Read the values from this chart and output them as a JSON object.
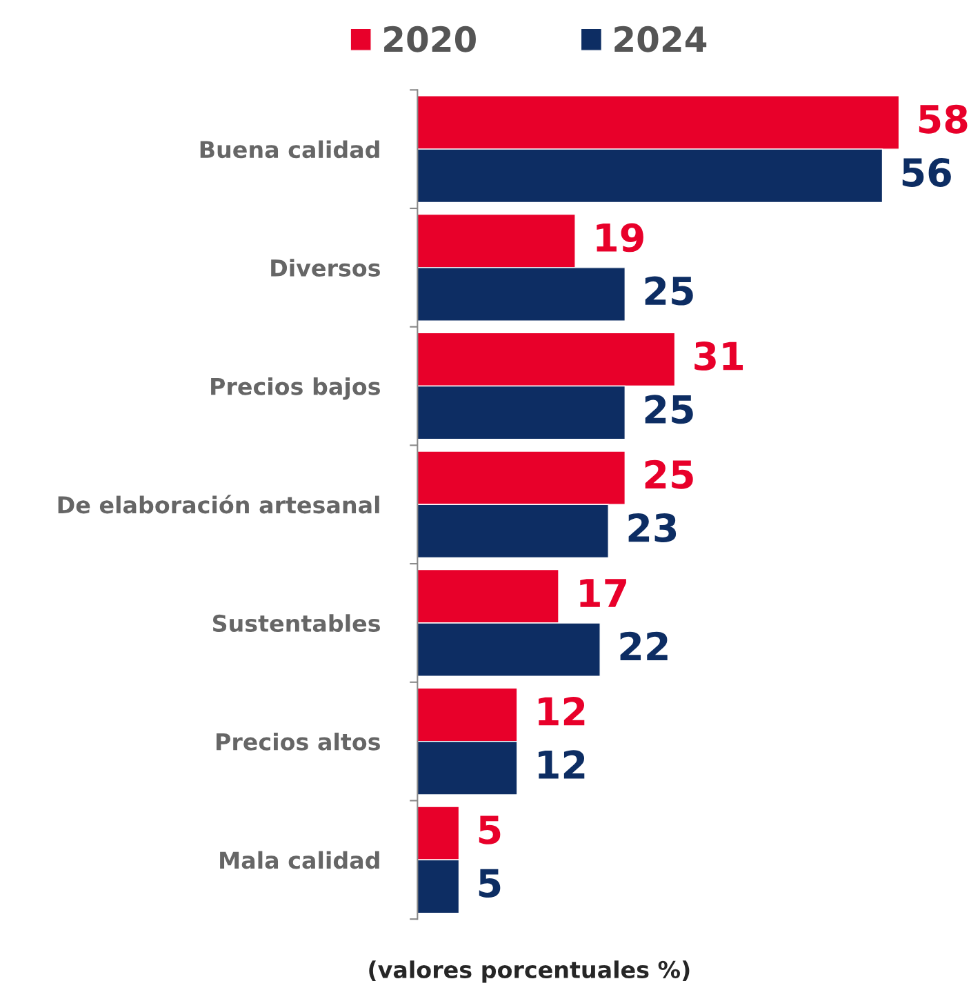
{
  "chart_data": {
    "type": "bar",
    "orientation": "horizontal",
    "xlabel": "(valores porcentuales %)",
    "categories": [
      "Buena calidad",
      "Diversos",
      "Precios bajos",
      "De elaboración artesanal",
      "Sustentables",
      "Precios altos",
      "Mala calidad"
    ],
    "series": [
      {
        "name": "2020",
        "color": "#e8002a",
        "values": [
          58,
          19,
          31,
          25,
          17,
          12,
          5
        ]
      },
      {
        "name": "2024",
        "color": "#0d2d63",
        "values": [
          56,
          25,
          25,
          23,
          22,
          12,
          5
        ]
      }
    ],
    "data_labels": true,
    "legend": "top",
    "grid": false
  }
}
